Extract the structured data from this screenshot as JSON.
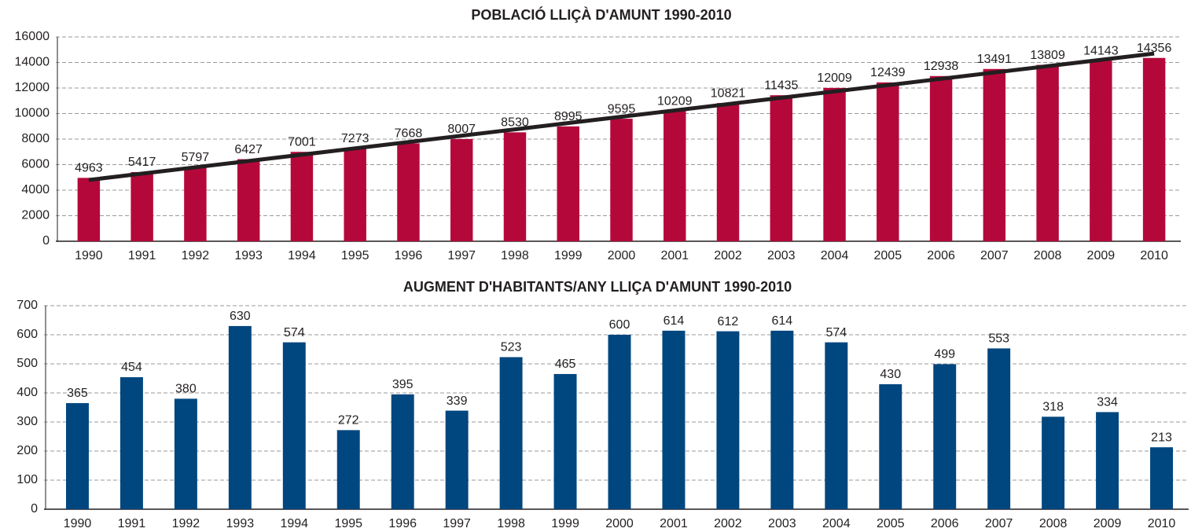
{
  "chart_data": [
    {
      "type": "bar",
      "title": "POBLACIÓ  LLIÇÀ D'AMUNT 1990-2010",
      "categories": [
        "1990",
        "1991",
        "1992",
        "1993",
        "1994",
        "1995",
        "1996",
        "1997",
        "1998",
        "1999",
        "2000",
        "2001",
        "2002",
        "2003",
        "2004",
        "2005",
        "2006",
        "2007",
        "2008",
        "2009",
        "2010"
      ],
      "values": [
        4963,
        5417,
        5797,
        6427,
        7001,
        7273,
        7668,
        8007,
        8530,
        8995,
        9595,
        10209,
        10821,
        11435,
        12009,
        12439,
        12938,
        13491,
        13809,
        14143,
        14356
      ],
      "color": "#b5083a",
      "trend_line": {
        "color": "#231f20",
        "start": 4800,
        "end": 14700
      },
      "ylim": [
        0,
        16000
      ],
      "yticks": [
        0,
        2000,
        4000,
        6000,
        8000,
        10000,
        12000,
        14000,
        16000
      ],
      "grid": true
    },
    {
      "type": "bar",
      "title": "AUGMENT D'HABITANTS/ANY  LLIÇA D'AMUNT 1990-2010",
      "categories": [
        "1990",
        "1991",
        "1992",
        "1993",
        "1994",
        "1995",
        "1996",
        "1997",
        "1998",
        "1999",
        "2000",
        "2001",
        "2002",
        "2003",
        "2004",
        "2005",
        "2006",
        "2007",
        "2008",
        "2009",
        "2010"
      ],
      "values": [
        365,
        454,
        380,
        630,
        574,
        272,
        395,
        339,
        523,
        465,
        600,
        614,
        612,
        614,
        574,
        430,
        499,
        553,
        318,
        334,
        213
      ],
      "color": "#00467f",
      "ylim": [
        0,
        700
      ],
      "yticks": [
        0,
        100,
        200,
        300,
        400,
        500,
        600,
        700
      ],
      "grid": true
    }
  ]
}
